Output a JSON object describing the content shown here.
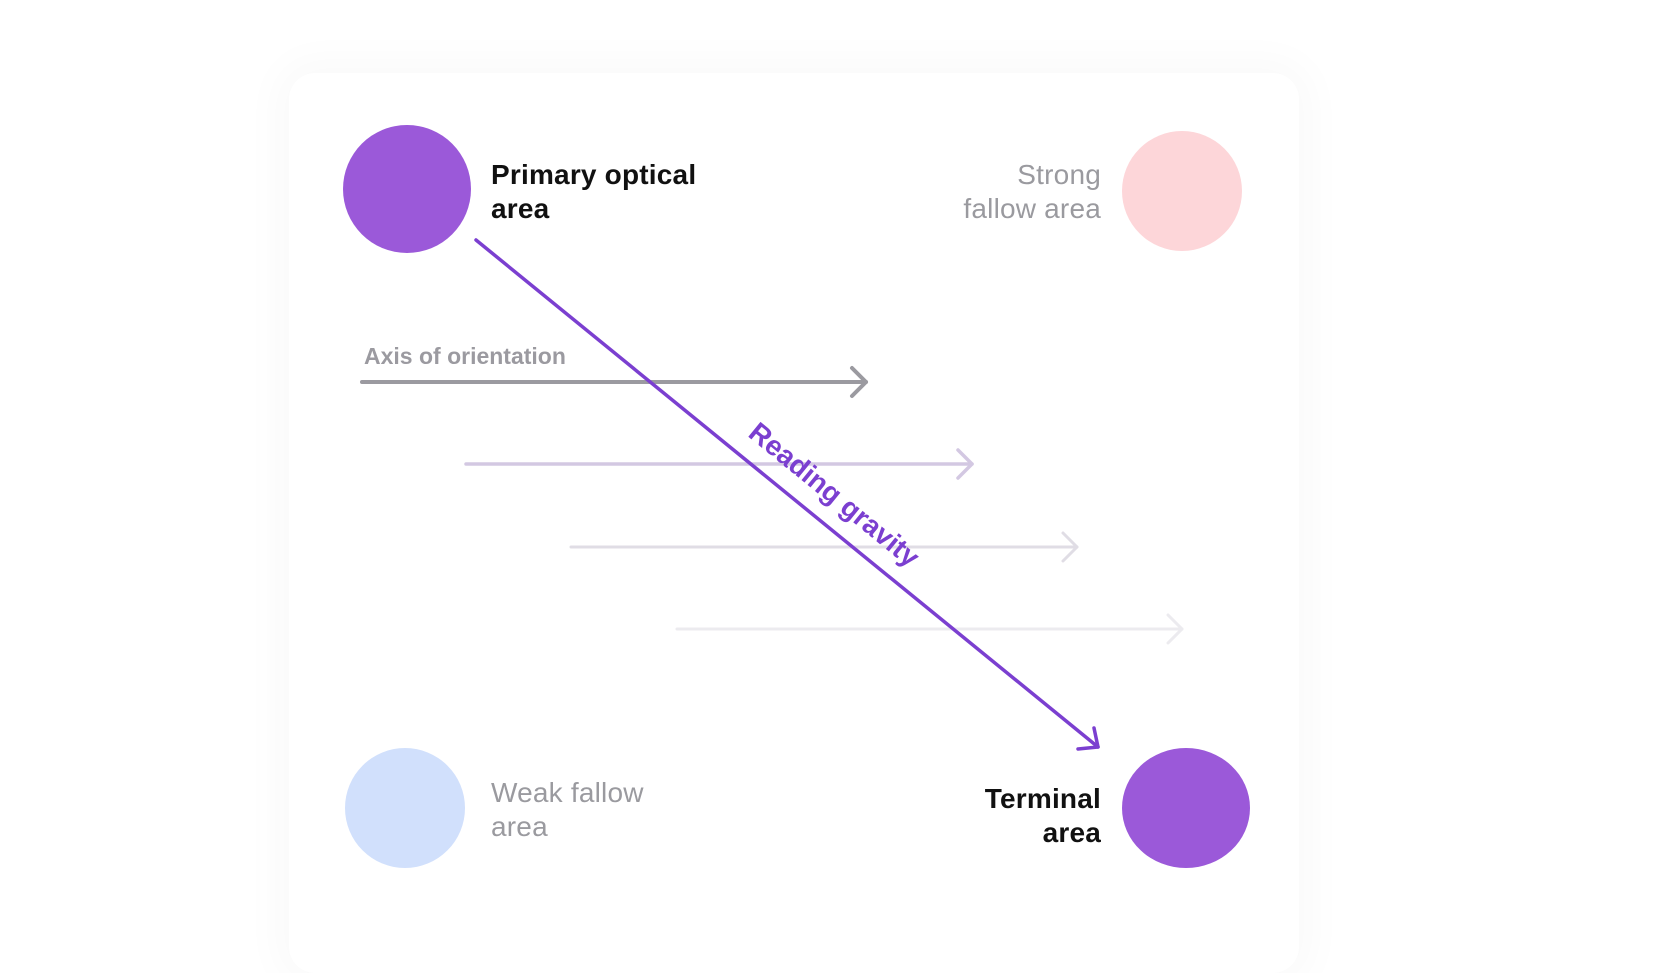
{
  "areas": {
    "primary": {
      "line1": "Primary optical",
      "line2": "area",
      "color": "#9b59d9"
    },
    "strong": {
      "line1": "Strong",
      "line2": "fallow area",
      "color": "#fdd6d9"
    },
    "weak": {
      "line1": "Weak fallow",
      "line2": "area",
      "color": "#d1e0fc"
    },
    "terminal": {
      "line1": "Terminal",
      "line2": "area",
      "color": "#9b59d9"
    }
  },
  "axis_label": "Axis of orientation",
  "gravity_label": "Reading gravity",
  "colors": {
    "gravity": "#7b3fd0",
    "axis": "#9b9aa0"
  }
}
